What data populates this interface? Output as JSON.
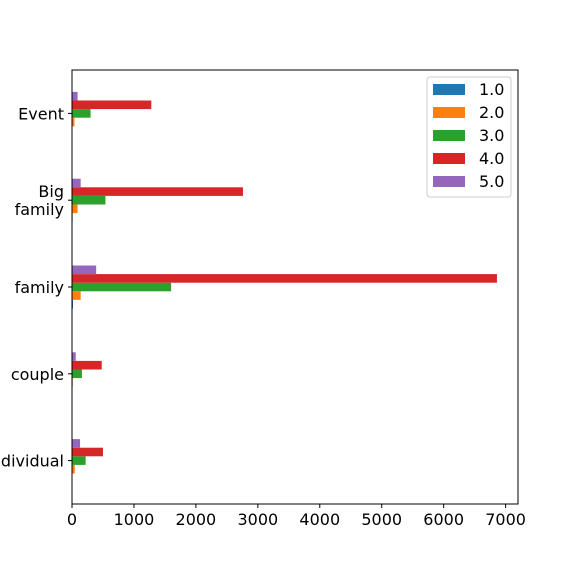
{
  "chart_data": {
    "type": "bar",
    "orientation": "horizontal",
    "categories": [
      "individual",
      "couple",
      "family",
      "Big\nfamily",
      "Event"
    ],
    "series": [
      {
        "name": "1.0",
        "color": "#1f77b4",
        "values": [
          8,
          5,
          15,
          10,
          5
        ]
      },
      {
        "name": "2.0",
        "color": "#ff7f0e",
        "values": [
          45,
          12,
          140,
          90,
          40
        ]
      },
      {
        "name": "3.0",
        "color": "#2ca02c",
        "values": [
          220,
          160,
          1600,
          540,
          300
        ]
      },
      {
        "name": "4.0",
        "color": "#d62728",
        "values": [
          500,
          480,
          6860,
          2760,
          1280
        ]
      },
      {
        "name": "5.0",
        "color": "#9467bd",
        "values": [
          130,
          60,
          390,
          140,
          90
        ]
      }
    ],
    "xlim": [
      0,
      7200
    ],
    "xticks": [
      0,
      1000,
      2000,
      3000,
      4000,
      5000,
      6000,
      7000
    ],
    "title": "",
    "xlabel": "",
    "ylabel": "",
    "grid": false,
    "legend_position": "upper right"
  }
}
